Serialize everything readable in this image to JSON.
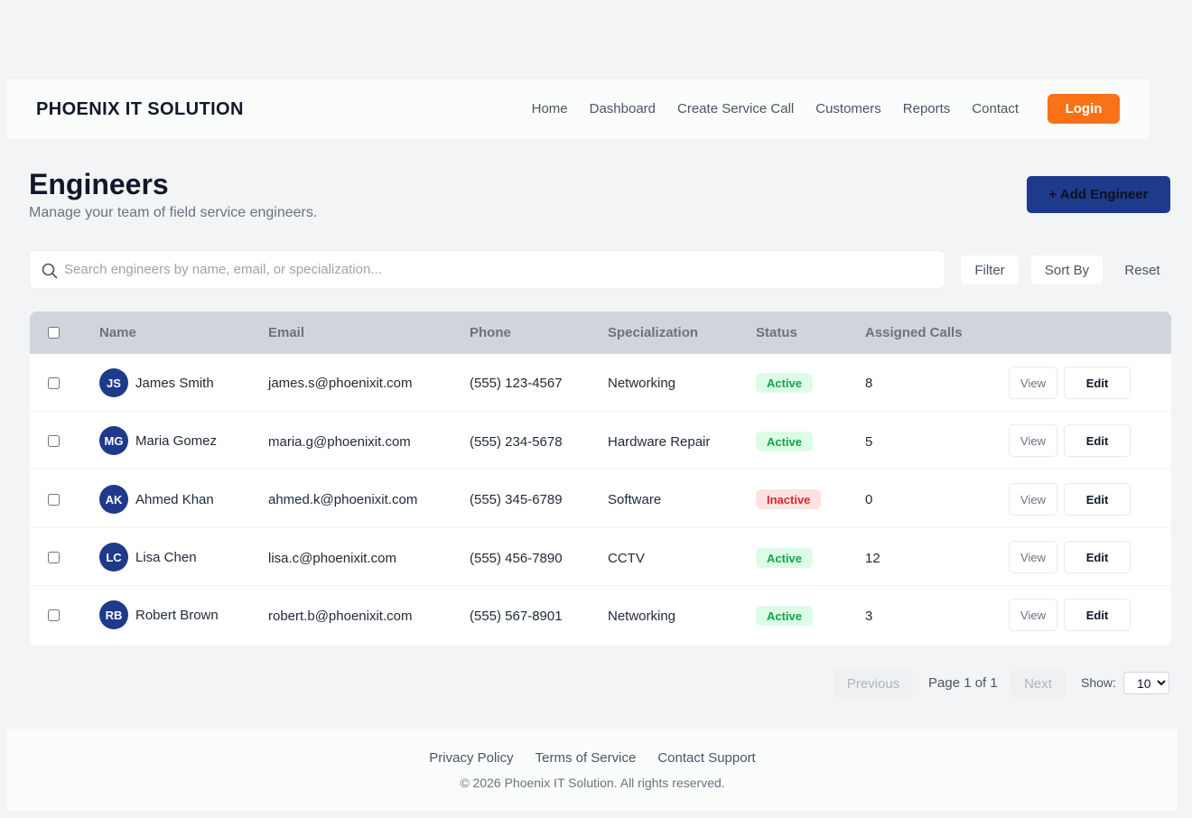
{
  "brand": "PHOENIX IT SOLUTION",
  "nav": {
    "links": [
      "Home",
      "Dashboard",
      "Create Service Call",
      "Customers",
      "Reports",
      "Contact"
    ],
    "login_label": "Login"
  },
  "page": {
    "title": "Engineers",
    "subtitle": "Manage your team of field service engineers.",
    "add_label": "+ Add Engineer"
  },
  "toolbar": {
    "search_placeholder": "Search engineers by name, email, or specialization...",
    "search_value": "",
    "filter_label": "Filter",
    "sort_label": "Sort By",
    "reset_label": "Reset"
  },
  "table": {
    "headers": [
      "Name",
      "Email",
      "Phone",
      "Specialization",
      "Status",
      "Assigned Calls"
    ],
    "rows": [
      {
        "initials": "JS",
        "name": "James Smith",
        "email": "james.s@phoenixit.com",
        "phone": "(555) 123-4567",
        "specialization": "Networking",
        "status": "Active",
        "calls": "8",
        "view": "View",
        "edit": "Edit"
      },
      {
        "initials": "MG",
        "name": "Maria Gomez",
        "email": "maria.g@phoenixit.com",
        "phone": "(555) 234-5678",
        "specialization": "Hardware Repair",
        "status": "Active",
        "calls": "5",
        "view": "View",
        "edit": "Edit"
      },
      {
        "initials": "AK",
        "name": "Ahmed Khan",
        "email": "ahmed.k@phoenixit.com",
        "phone": "(555) 345-6789",
        "specialization": "Software",
        "status": "Inactive",
        "calls": "0",
        "view": "View",
        "edit": "Edit"
      },
      {
        "initials": "LC",
        "name": "Lisa Chen",
        "email": "lisa.c@phoenixit.com",
        "phone": "(555) 456-7890",
        "specialization": "CCTV",
        "status": "Active",
        "calls": "12",
        "view": "View",
        "edit": "Edit"
      },
      {
        "initials": "RB",
        "name": "Robert Brown",
        "email": "robert.b@phoenixit.com",
        "phone": "(555) 567-8901",
        "specialization": "Networking",
        "status": "Active",
        "calls": "3",
        "view": "View",
        "edit": "Edit"
      }
    ]
  },
  "pagination": {
    "previous_label": "Previous",
    "page_info": "Page 1 of 1",
    "next_label": "Next",
    "show_label": "Show:",
    "page_size": "10"
  },
  "footer": {
    "links": [
      "Privacy Policy",
      "Terms of Service",
      "Contact Support"
    ],
    "copyright": "© 2026 Phoenix IT Solution. All rights reserved."
  },
  "colors": {
    "accent": "#f97316",
    "primary": "#1e3a8a",
    "active": "#16a34a",
    "inactive": "#dc2626"
  },
  "icons": {
    "search": "search-icon"
  }
}
